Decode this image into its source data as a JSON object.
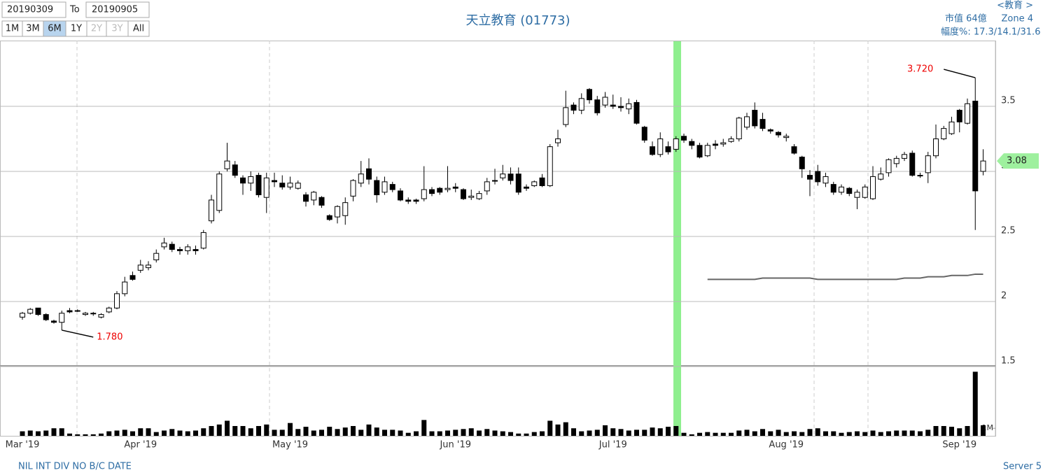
{
  "header": {
    "from": "20190309",
    "to_label": "To",
    "to": "20190905",
    "ranges": [
      "1M",
      "3M",
      "6M",
      "1Y",
      "2Y",
      "3Y",
      "All"
    ],
    "selected_range": "6M",
    "disabled_ranges": [
      "2Y",
      "3Y"
    ]
  },
  "info": {
    "sector": "<教育 >",
    "market_cap": "市值 64億",
    "zone": "Zone 4",
    "range_pct": "幅度%: 17.3/14.1/31.6"
  },
  "footer": {
    "note": "NIL INT DIV NO B/C DATE",
    "server": "Server 5"
  },
  "chart_data": {
    "type": "candlestick",
    "title": "天立教育 (01773)",
    "categories": [
      "Mar '19",
      null,
      null,
      null,
      null,
      null,
      null,
      null,
      null,
      null,
      null,
      null,
      null,
      null,
      null,
      "Apr '19",
      null,
      null,
      null,
      null,
      null,
      null,
      null,
      null,
      null,
      null,
      null,
      null,
      null,
      null,
      null,
      null,
      null,
      null,
      "May '19",
      null,
      null,
      null,
      null,
      null,
      null,
      null,
      null,
      null,
      null,
      null,
      null,
      null,
      null,
      null,
      null,
      null,
      null,
      null,
      null,
      "Jun '19",
      null,
      null,
      null,
      null,
      null,
      null,
      null,
      null,
      null,
      null,
      null,
      null,
      null,
      null,
      null,
      null,
      null,
      null,
      null,
      "Jul '19",
      null,
      null,
      null,
      null,
      null,
      null,
      null,
      null,
      null,
      null,
      null,
      null,
      null,
      null,
      null,
      null,
      null,
      null,
      null,
      null,
      null,
      "Aug '19",
      null,
      null,
      null,
      null,
      null,
      null,
      null,
      null,
      null,
      null,
      null,
      null,
      null,
      null,
      null,
      null,
      null,
      null,
      null,
      null,
      null,
      "Sep '19",
      null,
      null,
      null
    ],
    "open": [
      1.88,
      1.91,
      1.95,
      1.9,
      1.85,
      1.84,
      1.93,
      1.93,
      1.9,
      1.91,
      1.88,
      1.92,
      1.95,
      2.06,
      2.2,
      2.24,
      2.26,
      2.32,
      2.42,
      2.44,
      2.4,
      2.39,
      2.4,
      2.41,
      2.62,
      2.7,
      3.02,
      3.05,
      2.95,
      2.91,
      2.97,
      2.8,
      2.93,
      2.91,
      2.88,
      2.87,
      2.82,
      2.78,
      2.8,
      2.66,
      2.65,
      2.66,
      2.81,
      2.91,
      3.02,
      2.93,
      2.84,
      2.9,
      2.85,
      2.78,
      2.78,
      2.79,
      2.86,
      2.87,
      2.86,
      2.88,
      2.86,
      2.8,
      2.79,
      2.85,
      2.93,
      2.95,
      2.98,
      2.98,
      2.88,
      2.89,
      2.95,
      2.89,
      3.22,
      3.36,
      3.51,
      3.47,
      3.63,
      3.55,
      3.51,
      3.51,
      3.5,
      3.48,
      3.53,
      3.34,
      3.19,
      3.13,
      3.19,
      3.17,
      3.27,
      3.23,
      3.2,
      3.12,
      3.21,
      3.21,
      3.23,
      3.25,
      3.34,
      3.47,
      3.4,
      3.32,
      3.3,
      3.26,
      3.19,
      3.11,
      2.97,
      3.0,
      2.91,
      2.9,
      2.84,
      2.87,
      2.8,
      2.8,
      2.79,
      2.94,
      2.99,
      3.06,
      3.1,
      3.14,
      2.97,
      2.99,
      3.12,
      3.25,
      3.29,
      3.47,
      3.37,
      3.54,
      3.0
    ],
    "high": [
      1.92,
      1.95,
      1.95,
      1.91,
      1.86,
      1.93,
      1.95,
      1.94,
      1.92,
      1.92,
      1.91,
      1.96,
      2.08,
      2.19,
      2.23,
      2.32,
      2.31,
      2.4,
      2.49,
      2.46,
      2.42,
      2.44,
      2.43,
      2.55,
      2.82,
      3.0,
      3.22,
      3.08,
      2.97,
      3.0,
      2.99,
      2.99,
      2.99,
      2.97,
      2.96,
      2.93,
      2.84,
      2.85,
      2.81,
      2.67,
      2.74,
      2.8,
      2.94,
      3.08,
      3.1,
      2.96,
      2.96,
      2.92,
      2.87,
      2.8,
      2.79,
      3.04,
      2.88,
      2.88,
      3.04,
      2.91,
      2.87,
      2.86,
      2.85,
      2.95,
      3.02,
      3.05,
      3.03,
      3.03,
      2.9,
      2.93,
      2.98,
      3.21,
      3.32,
      3.62,
      3.53,
      3.6,
      3.64,
      3.58,
      3.61,
      3.59,
      3.57,
      3.56,
      3.55,
      3.35,
      3.23,
      3.3,
      3.23,
      3.27,
      3.29,
      3.25,
      3.22,
      3.22,
      3.24,
      3.25,
      3.27,
      3.42,
      3.45,
      3.53,
      3.45,
      3.33,
      3.31,
      3.29,
      3.21,
      3.12,
      3.01,
      3.05,
      2.99,
      2.92,
      2.9,
      2.88,
      2.86,
      2.9,
      3.04,
      3.03,
      3.1,
      3.12,
      3.15,
      3.16,
      2.99,
      3.15,
      3.36,
      3.35,
      3.42,
      3.48,
      3.56,
      3.72,
      3.17
    ],
    "low": [
      1.86,
      1.9,
      1.89,
      1.85,
      1.83,
      1.78,
      1.91,
      1.92,
      1.89,
      1.89,
      1.87,
      1.91,
      1.94,
      2.04,
      2.16,
      2.22,
      2.24,
      2.3,
      2.4,
      2.38,
      2.36,
      2.36,
      2.36,
      2.4,
      2.6,
      2.68,
      3.0,
      2.95,
      2.82,
      2.85,
      2.8,
      2.68,
      2.88,
      2.86,
      2.86,
      2.86,
      2.73,
      2.74,
      2.72,
      2.62,
      2.6,
      2.59,
      2.77,
      2.88,
      2.9,
      2.76,
      2.82,
      2.84,
      2.77,
      2.75,
      2.75,
      2.77,
      2.81,
      2.82,
      2.84,
      2.84,
      2.78,
      2.78,
      2.78,
      2.82,
      2.9,
      2.93,
      2.9,
      2.82,
      2.85,
      2.88,
      2.88,
      2.88,
      3.19,
      3.34,
      3.44,
      3.44,
      3.52,
      3.43,
      3.49,
      3.48,
      3.46,
      3.44,
      3.36,
      3.22,
      3.12,
      3.11,
      3.13,
      3.15,
      3.22,
      3.17,
      3.1,
      3.11,
      3.17,
      3.19,
      3.22,
      3.23,
      3.32,
      3.33,
      3.31,
      3.29,
      3.26,
      3.23,
      3.13,
      2.95,
      2.81,
      2.89,
      2.88,
      2.82,
      2.82,
      2.81,
      2.71,
      2.79,
      2.78,
      2.93,
      2.96,
      3.03,
      3.08,
      2.96,
      2.95,
      2.91,
      3.1,
      3.24,
      3.28,
      3.3,
      3.36,
      2.55,
      2.97
    ],
    "close": [
      1.91,
      1.94,
      1.9,
      1.86,
      1.84,
      1.91,
      1.92,
      1.93,
      1.91,
      1.91,
      1.9,
      1.95,
      2.06,
      2.15,
      2.17,
      2.28,
      2.28,
      2.37,
      2.45,
      2.4,
      2.39,
      2.42,
      2.39,
      2.53,
      2.78,
      2.98,
      3.08,
      2.97,
      2.91,
      2.96,
      2.82,
      2.95,
      2.92,
      2.88,
      2.91,
      2.91,
      2.77,
      2.84,
      2.74,
      2.63,
      2.73,
      2.76,
      2.93,
      2.98,
      2.94,
      2.82,
      2.92,
      2.86,
      2.78,
      2.77,
      2.77,
      2.86,
      2.83,
      2.84,
      2.87,
      2.87,
      2.79,
      2.81,
      2.83,
      2.92,
      2.93,
      2.98,
      2.93,
      2.84,
      2.87,
      2.92,
      2.89,
      3.19,
      3.25,
      3.49,
      3.47,
      3.56,
      3.55,
      3.45,
      3.57,
      3.5,
      3.49,
      3.52,
      3.37,
      3.24,
      3.13,
      3.25,
      3.15,
      3.25,
      3.24,
      3.2,
      3.11,
      3.2,
      3.2,
      3.22,
      3.25,
      3.41,
      3.42,
      3.35,
      3.33,
      3.31,
      3.28,
      3.27,
      3.14,
      3.02,
      2.94,
      2.92,
      2.96,
      2.84,
      2.88,
      2.83,
      2.84,
      2.88,
      2.96,
      2.98,
      3.09,
      3.1,
      3.13,
      2.97,
      2.97,
      3.12,
      3.25,
      3.33,
      3.38,
      3.38,
      3.52,
      2.85,
      3.08
    ],
    "volume": [
      0.6,
      0.7,
      0.6,
      0.7,
      1.0,
      1.0,
      0.3,
      0.2,
      0.2,
      0.2,
      0.3,
      0.6,
      0.7,
      0.8,
      0.6,
      1.0,
      1.0,
      0.5,
      0.7,
      0.9,
      0.7,
      0.6,
      0.7,
      1.0,
      1.3,
      1.5,
      2.0,
      1.3,
      1.3,
      1.0,
      1.3,
      1.5,
      0.8,
      0.8,
      1.7,
      0.9,
      1.2,
      0.7,
      0.8,
      1.2,
      0.9,
      1.1,
      1.3,
      0.8,
      1.5,
      1.1,
      0.8,
      0.8,
      0.7,
      0.4,
      0.6,
      2.1,
      0.6,
      0.6,
      0.7,
      0.8,
      0.9,
      1.0,
      0.7,
      0.9,
      0.7,
      0.6,
      0.5,
      0.3,
      0.3,
      0.5,
      0.6,
      2.0,
      1.5,
      1.8,
      1.0,
      0.6,
      0.7,
      0.8,
      1.4,
      1.0,
      0.9,
      0.7,
      0.8,
      0.8,
      1.1,
      1.0,
      1.2,
      1.3,
      0.4,
      0.2,
      0.4,
      0.5,
      0.4,
      0.4,
      0.4,
      0.7,
      0.8,
      0.6,
      0.9,
      0.6,
      0.8,
      0.5,
      0.6,
      0.5,
      0.9,
      1.0,
      0.6,
      0.6,
      0.4,
      0.5,
      0.6,
      0.5,
      0.7,
      0.5,
      0.6,
      0.7,
      0.7,
      0.7,
      0.6,
      0.8,
      1.3,
      1.3,
      1.2,
      1.0,
      1.3,
      8.5,
      1.4
    ],
    "ma": {
      "color": "#666666",
      "values": [
        null,
        null,
        null,
        null,
        null,
        null,
        null,
        null,
        null,
        null,
        null,
        null,
        null,
        null,
        null,
        null,
        null,
        null,
        null,
        null,
        null,
        null,
        null,
        null,
        null,
        null,
        null,
        null,
        null,
        null,
        null,
        null,
        null,
        null,
        null,
        null,
        null,
        null,
        null,
        null,
        null,
        null,
        null,
        null,
        null,
        null,
        null,
        null,
        null,
        null,
        null,
        null,
        null,
        null,
        null,
        null,
        null,
        null,
        null,
        null,
        null,
        null,
        null,
        null,
        null,
        null,
        null,
        null,
        null,
        null,
        null,
        null,
        null,
        null,
        null,
        null,
        null,
        null,
        null,
        null,
        null,
        null,
        null,
        null,
        null,
        null,
        null,
        2.17,
        2.17,
        2.17,
        2.17,
        2.17,
        2.17,
        2.17,
        2.18,
        2.18,
        2.18,
        2.18,
        2.18,
        2.18,
        2.18,
        2.17,
        2.17,
        2.17,
        2.17,
        2.17,
        2.17,
        2.17,
        2.17,
        2.17,
        2.17,
        2.17,
        2.18,
        2.18,
        2.18,
        2.19,
        2.19,
        2.19,
        2.2,
        2.2,
        2.2,
        2.21,
        2.21
      ]
    },
    "ylim": [
      1.5,
      4.0
    ],
    "yticks": [
      1.5,
      2,
      2.5,
      3,
      3.5
    ],
    "volume_ylim": [
      0,
      9
    ],
    "volume_yticks": [
      {
        "value": 1,
        "label": "1M"
      }
    ],
    "last_price": 3.08,
    "annotations": [
      {
        "value": 3.72,
        "label": "3.720",
        "at": "high"
      },
      {
        "value": 1.78,
        "label": "1.780",
        "at": "low"
      }
    ],
    "up_color": "#ffffff",
    "down_color": "#000000",
    "grid": true
  }
}
